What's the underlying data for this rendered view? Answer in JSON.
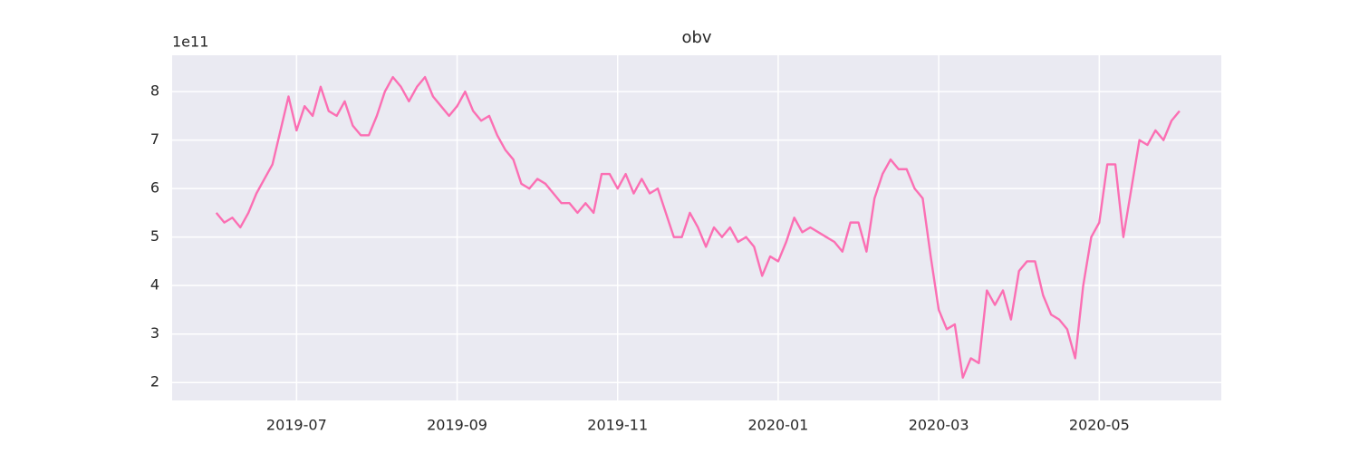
{
  "chart_data": {
    "type": "line",
    "title": "obv",
    "y_offset_label": "1e11",
    "xlim": [
      -0.55,
      12.52
    ],
    "ylim": [
      1.63,
      8.75
    ],
    "xticks": [
      {
        "value": 1,
        "label": "2019-07"
      },
      {
        "value": 3,
        "label": "2019-09"
      },
      {
        "value": 5,
        "label": "2019-11"
      },
      {
        "value": 7,
        "label": "2020-01"
      },
      {
        "value": 9,
        "label": "2020-03"
      },
      {
        "value": 11,
        "label": "2020-05"
      }
    ],
    "yticks": [
      2,
      3,
      4,
      5,
      6,
      7,
      8
    ],
    "grid": true,
    "x": [
      0,
      0.1,
      0.2,
      0.3,
      0.4,
      0.5,
      0.6,
      0.7,
      0.8,
      0.9,
      1,
      1.1,
      1.2,
      1.3,
      1.4,
      1.5,
      1.6,
      1.7,
      1.8,
      1.9,
      2,
      2.1,
      2.2,
      2.3,
      2.4,
      2.5,
      2.6,
      2.7,
      2.8,
      2.9,
      3,
      3.1,
      3.2,
      3.3,
      3.4,
      3.5,
      3.6,
      3.7,
      3.8,
      3.9,
      4,
      4.1,
      4.2,
      4.3,
      4.4,
      4.5,
      4.6,
      4.7,
      4.8,
      4.9,
      5,
      5.1,
      5.2,
      5.3,
      5.4,
      5.5,
      5.6,
      5.7,
      5.8,
      5.9,
      6,
      6.1,
      6.2,
      6.3,
      6.4,
      6.5,
      6.6,
      6.7,
      6.8,
      6.9,
      7,
      7.1,
      7.2,
      7.3,
      7.4,
      7.5,
      7.6,
      7.7,
      7.8,
      7.9,
      8,
      8.1,
      8.2,
      8.3,
      8.4,
      8.5,
      8.6,
      8.7,
      8.8,
      8.9,
      9,
      9.1,
      9.2,
      9.3,
      9.4,
      9.5,
      9.6,
      9.7,
      9.8,
      9.9,
      10,
      10.1,
      10.2,
      10.3,
      10.4,
      10.5,
      10.6,
      10.7,
      10.8,
      10.9,
      11,
      11.1,
      11.2,
      11.3,
      11.4,
      11.5,
      11.6,
      11.7,
      11.8,
      11.9,
      12
    ],
    "series": [
      {
        "name": "obv",
        "color": "#fb6fb3",
        "values": [
          5.5,
          5.3,
          5.4,
          5.2,
          5.5,
          5.9,
          6.2,
          6.5,
          7.2,
          7.9,
          7.2,
          7.7,
          7.5,
          8.1,
          7.6,
          7.5,
          7.8,
          7.3,
          7.1,
          7.1,
          7.5,
          8.0,
          8.3,
          8.1,
          7.8,
          8.1,
          8.3,
          7.9,
          7.7,
          7.5,
          7.7,
          8.0,
          7.6,
          7.4,
          7.5,
          7.1,
          6.8,
          6.6,
          6.1,
          6.0,
          6.2,
          6.1,
          5.9,
          5.7,
          5.7,
          5.5,
          5.7,
          5.5,
          6.3,
          6.3,
          6.0,
          6.3,
          5.9,
          6.2,
          5.9,
          6.0,
          5.5,
          5.0,
          5.0,
          5.5,
          5.2,
          4.8,
          5.2,
          5.0,
          5.2,
          4.9,
          5.0,
          4.8,
          4.2,
          4.6,
          4.5,
          4.9,
          5.4,
          5.1,
          5.2,
          5.1,
          5.0,
          4.9,
          4.7,
          5.3,
          5.3,
          4.7,
          5.8,
          6.3,
          6.6,
          6.4,
          6.4,
          6.0,
          5.8,
          4.6,
          3.5,
          3.1,
          3.2,
          2.1,
          2.5,
          2.4,
          3.9,
          3.6,
          3.9,
          3.3,
          4.3,
          4.5,
          4.5,
          3.8,
          3.4,
          3.3,
          3.1,
          2.5,
          4.0,
          5.0,
          5.3,
          6.5,
          6.5,
          5.0,
          6.0,
          7.0,
          6.9,
          7.2,
          7.0,
          7.4,
          7.6
        ]
      }
    ]
  }
}
